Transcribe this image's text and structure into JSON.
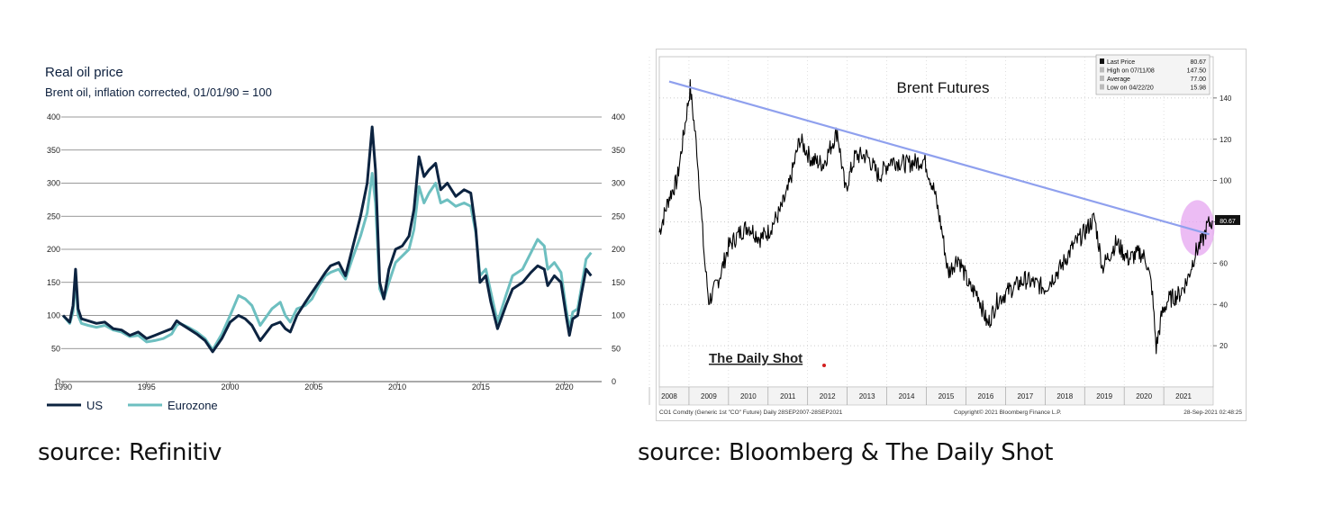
{
  "left_chart": {
    "title": "Real oil price",
    "subtitle": "Brent oil, inflation corrected, 01/01/90 = 100",
    "source_label": "source: Refinitiv"
  },
  "right_chart": {
    "title": "Brent Futures",
    "watermark": "The Daily Shot",
    "source_label": "source: Bloomberg & The Daily Shot",
    "footer_left": "CO1 Comdty (Generic 1st \"CO\" Future)  Daily 28SEP2007-28SEP2021",
    "footer_mid": "Copyright© 2021 Bloomberg Finance L.P.",
    "footer_right": "28-Sep-2021 02:48:25",
    "stats": [
      {
        "label": "Last Price",
        "value": "80.67"
      },
      {
        "label": "High on 07/11/08",
        "value": "147.50"
      },
      {
        "label": "Average",
        "value": "77.00"
      },
      {
        "label": "Low on 04/22/20",
        "value": "15.98"
      }
    ],
    "last_price_tag": "80.67"
  },
  "chart_data": [
    {
      "type": "line",
      "title": "Real oil price",
      "subtitle": "Brent oil, inflation corrected, 01/01/90 = 100",
      "xlim": [
        1990,
        2021.8
      ],
      "ylim": [
        0,
        400
      ],
      "x_ticks": [
        "1990",
        "1995",
        "2000",
        "2005",
        "2010",
        "2015",
        "2020"
      ],
      "y_ticks": [
        "0",
        "50",
        "100",
        "150",
        "200",
        "250",
        "300",
        "350",
        "400"
      ],
      "grid": true,
      "legend": "bottom-left",
      "colors": {
        "US": "#0c2340",
        "Eurozone": "#6dbfc0"
      },
      "series": [
        {
          "name": "US",
          "x": [
            1990.0,
            1990.4,
            1990.6,
            1990.75,
            1990.9,
            1991.1,
            1991.5,
            1992.0,
            1992.5,
            1993.0,
            1993.5,
            1994.0,
            1994.5,
            1995.0,
            1995.5,
            1996.0,
            1996.5,
            1996.8,
            1997.0,
            1997.5,
            1998.0,
            1998.5,
            1998.95,
            1999.5,
            2000.0,
            2000.5,
            2000.9,
            2001.3,
            2001.8,
            2002.5,
            2003.0,
            2003.3,
            2003.6,
            2004.0,
            2004.5,
            2004.9,
            2005.3,
            2005.7,
            2006.0,
            2006.5,
            2006.9,
            2007.3,
            2007.8,
            2008.2,
            2008.5,
            2008.7,
            2008.95,
            2009.2,
            2009.5,
            2009.9,
            2010.3,
            2010.7,
            2011.0,
            2011.3,
            2011.6,
            2011.9,
            2012.3,
            2012.6,
            2013.0,
            2013.5,
            2014.0,
            2014.4,
            2014.7,
            2014.95,
            2015.3,
            2015.6,
            2016.0,
            2016.5,
            2016.9,
            2017.5,
            2018.0,
            2018.4,
            2018.8,
            2019.0,
            2019.4,
            2019.8,
            2020.1,
            2020.3,
            2020.5,
            2020.8,
            2021.0,
            2021.3,
            2021.6
          ],
          "values": [
            100,
            90,
            115,
            170,
            110,
            95,
            92,
            88,
            90,
            80,
            78,
            70,
            75,
            65,
            70,
            75,
            80,
            92,
            88,
            80,
            72,
            62,
            45,
            65,
            90,
            100,
            95,
            85,
            62,
            85,
            90,
            80,
            75,
            100,
            120,
            135,
            150,
            165,
            175,
            180,
            160,
            200,
            250,
            300,
            385,
            320,
            150,
            125,
            170,
            200,
            205,
            220,
            260,
            340,
            310,
            320,
            330,
            290,
            300,
            280,
            290,
            285,
            230,
            150,
            160,
            120,
            80,
            115,
            140,
            150,
            165,
            175,
            170,
            145,
            160,
            150,
            100,
            70,
            95,
            100,
            130,
            170,
            160
          ]
        },
        {
          "name": "Eurozone",
          "x": [
            1990.0,
            1990.4,
            1990.6,
            1990.75,
            1990.9,
            1991.1,
            1991.5,
            1992.0,
            1992.5,
            1993.0,
            1993.5,
            1994.0,
            1994.5,
            1995.0,
            1995.5,
            1996.0,
            1996.5,
            1996.8,
            1997.0,
            1997.5,
            1998.0,
            1998.5,
            1998.95,
            1999.5,
            2000.0,
            2000.5,
            2000.9,
            2001.3,
            2001.8,
            2002.5,
            2003.0,
            2003.3,
            2003.6,
            2004.0,
            2004.5,
            2004.9,
            2005.3,
            2005.7,
            2006.0,
            2006.5,
            2006.9,
            2007.3,
            2007.8,
            2008.2,
            2008.5,
            2008.7,
            2008.95,
            2009.2,
            2009.5,
            2009.9,
            2010.3,
            2010.7,
            2011.0,
            2011.3,
            2011.6,
            2011.9,
            2012.3,
            2012.6,
            2013.0,
            2013.5,
            2014.0,
            2014.4,
            2014.7,
            2014.95,
            2015.3,
            2015.6,
            2016.0,
            2016.5,
            2016.9,
            2017.5,
            2018.0,
            2018.4,
            2018.8,
            2019.0,
            2019.4,
            2019.8,
            2020.1,
            2020.3,
            2020.5,
            2020.8,
            2021.0,
            2021.3,
            2021.6
          ],
          "values": [
            100,
            88,
            105,
            155,
            100,
            88,
            85,
            82,
            85,
            78,
            75,
            68,
            70,
            60,
            62,
            65,
            72,
            85,
            88,
            82,
            75,
            65,
            48,
            72,
            100,
            130,
            125,
            115,
            85,
            110,
            120,
            100,
            90,
            110,
            115,
            125,
            145,
            160,
            165,
            170,
            155,
            185,
            220,
            255,
            315,
            270,
            140,
            125,
            150,
            180,
            190,
            200,
            230,
            295,
            270,
            285,
            300,
            270,
            275,
            265,
            270,
            265,
            225,
            160,
            170,
            135,
            90,
            130,
            160,
            170,
            195,
            215,
            205,
            170,
            180,
            165,
            110,
            80,
            105,
            110,
            140,
            185,
            195
          ]
        }
      ]
    },
    {
      "type": "line",
      "title": "Brent Futures",
      "xlim": [
        2007.75,
        2021.75
      ],
      "ylim": [
        0,
        160
      ],
      "x_ticks": [
        "2008",
        "2009",
        "2010",
        "2011",
        "2012",
        "2013",
        "2014",
        "2015",
        "2016",
        "2017",
        "2018",
        "2019",
        "2020",
        "2021"
      ],
      "y_ticks": [
        "20",
        "40",
        "60",
        "80",
        "100",
        "120",
        "140"
      ],
      "series": [
        {
          "name": "",
          "x": [
            2007.75,
            2008.0,
            2008.2,
            2008.35,
            2008.53,
            2008.7,
            2008.9,
            2009.0,
            2009.1,
            2009.3,
            2009.5,
            2009.8,
            2010.0,
            2010.3,
            2010.5,
            2010.8,
            2011.0,
            2011.3,
            2011.6,
            2011.9,
            2012.25,
            2012.45,
            2012.7,
            2013.0,
            2013.3,
            2013.6,
            2014.0,
            2014.45,
            2014.7,
            2014.9,
            2015.05,
            2015.3,
            2015.6,
            2015.8,
            2016.05,
            2016.3,
            2016.6,
            2017.0,
            2017.5,
            2017.9,
            2018.2,
            2018.5,
            2018.75,
            2018.95,
            2019.3,
            2019.6,
            2019.9,
            2020.05,
            2020.2,
            2020.31,
            2020.45,
            2020.6,
            2020.9,
            2021.1,
            2021.3,
            2021.5,
            2021.6,
            2021.73
          ],
          "values": [
            75,
            92,
            100,
            120,
            145,
            115,
            60,
            42,
            45,
            55,
            68,
            75,
            78,
            72,
            75,
            85,
            95,
            120,
            110,
            108,
            124,
            95,
            112,
            112,
            102,
            110,
            108,
            110,
            95,
            75,
            55,
            63,
            48,
            45,
            30,
            42,
            47,
            52,
            48,
            58,
            68,
            75,
            82,
            58,
            70,
            62,
            65,
            62,
            48,
            19,
            35,
            42,
            45,
            52,
            65,
            72,
            78,
            80.67
          ]
        },
        {
          "name": "",
          "x": [
            2007.75,
            2021.75
          ],
          "values": [
            148,
            74
          ]
        }
      ],
      "colors": {
        "price": "#000000",
        "trend": "#8fa0ee",
        "highlight": "#e5a6f0"
      }
    }
  ]
}
